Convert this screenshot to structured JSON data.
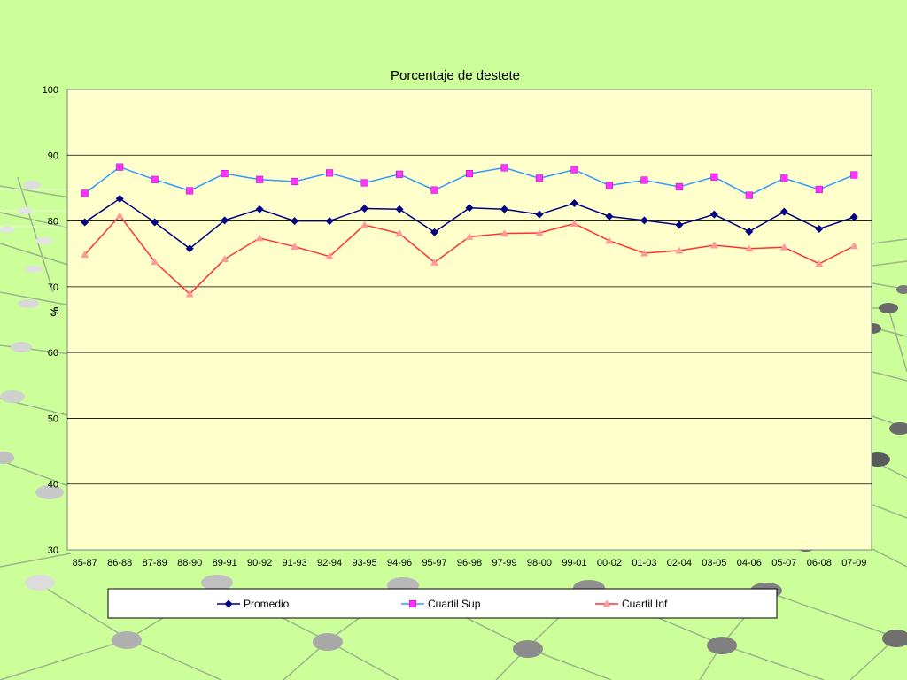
{
  "colors": {
    "slide_background": "#ccff99",
    "plot_area": "#ffffcc",
    "gridline": "#000000",
    "promedio": "#000080",
    "cuartil_sup_line": "#3399ff",
    "cuartil_sup_marker": "#ff33ff",
    "cuartil_inf_line": "#ff3333",
    "cuartil_inf_marker": "#ff9999"
  },
  "chart_data": {
    "type": "line",
    "title": "Porcentaje de destete",
    "xlabel": "",
    "ylabel": "%",
    "ylim": [
      30,
      100
    ],
    "yticks": [
      30,
      40,
      50,
      60,
      70,
      80,
      90,
      100
    ],
    "grid": true,
    "legend_position": "bottom",
    "categories": [
      "85-87",
      "86-88",
      "87-89",
      "88-90",
      "89-91",
      "90-92",
      "91-93",
      "92-94",
      "93-95",
      "94-96",
      "95-97",
      "96-98",
      "97-99",
      "98-00",
      "99-01",
      "00-02",
      "01-03",
      "02-04",
      "03-05",
      "04-06",
      "05-07",
      "06-08",
      "07-09"
    ],
    "series": [
      {
        "name": "Promedio",
        "marker": "diamond",
        "values": [
          79.8,
          83.4,
          79.8,
          75.8,
          80.1,
          81.8,
          80.0,
          80.0,
          81.9,
          81.8,
          78.3,
          82.0,
          81.8,
          81.0,
          82.7,
          80.7,
          80.1,
          79.4,
          81.0,
          78.4,
          81.4,
          78.8,
          80.6
        ]
      },
      {
        "name": "Cuartil Sup",
        "marker": "square",
        "values": [
          84.2,
          88.2,
          86.3,
          84.6,
          87.2,
          86.3,
          86.0,
          87.3,
          85.8,
          87.1,
          84.7,
          87.2,
          88.1,
          86.5,
          87.8,
          85.4,
          86.2,
          85.2,
          86.7,
          83.9,
          86.5,
          84.8,
          87.0
        ]
      },
      {
        "name": "Cuartil Inf",
        "marker": "triangle",
        "values": [
          74.9,
          80.8,
          73.8,
          68.9,
          74.2,
          77.4,
          76.1,
          74.6,
          79.4,
          78.1,
          73.7,
          77.6,
          78.1,
          78.2,
          79.6,
          77.0,
          75.1,
          75.5,
          76.3,
          75.8,
          76.0,
          73.5,
          76.2
        ]
      }
    ]
  }
}
